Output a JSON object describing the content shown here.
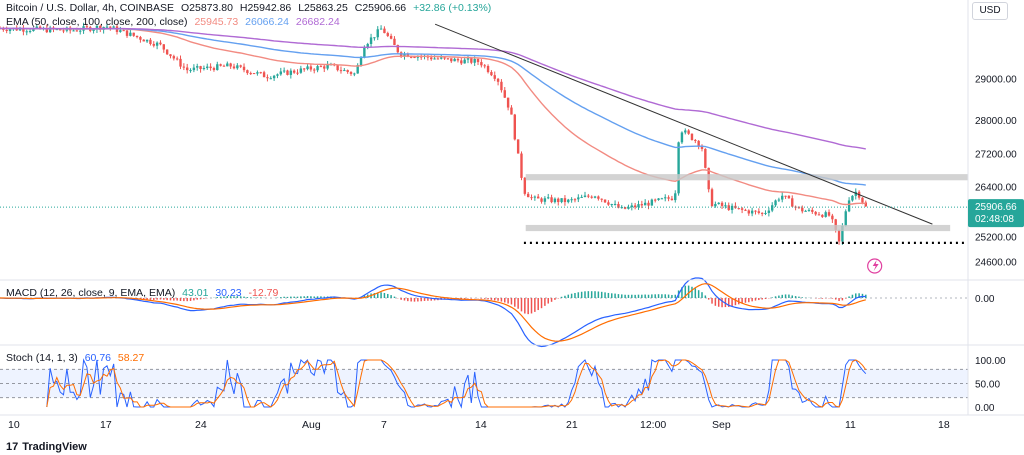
{
  "header": {
    "symbol": "Bitcoin / U.S. Dollar, 4h, COINBASE",
    "ohlc": {
      "open": "O25873.80",
      "high": "H25942.86",
      "low": "L25863.25",
      "close": "C25906.66",
      "change": "+32.86 (+0.13%)"
    },
    "ema_title": "EMA (50, close, 100, close, 200, close)",
    "ema_values": [
      "25945.73",
      "26066.24",
      "26682.24"
    ],
    "currency_button": "USD"
  },
  "price_axis": {
    "ticks": [
      "29000.00",
      "28000.00",
      "27200.00",
      "26400.00",
      "25200.00",
      "24600.00"
    ],
    "current_price": "25906.66",
    "countdown": "02:48:08"
  },
  "time_axis": {
    "labels": [
      "10",
      "17",
      "24",
      "Aug",
      "7",
      "14",
      "21",
      "12:00",
      "Sep",
      "11",
      "18"
    ]
  },
  "macd": {
    "title": "MACD (12, 26, close, 9, EMA, EMA)",
    "values": [
      "43.01",
      "30.23",
      "-12.79"
    ],
    "axis_label": "0.00"
  },
  "stoch": {
    "title": "Stoch (14, 1, 3)",
    "values": [
      "60.76",
      "58.27"
    ],
    "axis_labels": [
      "100.00",
      "50.00",
      "0.00"
    ]
  },
  "branding": {
    "name": "TradingView"
  },
  "colors": {
    "up": "#26a69a",
    "down": "#ef5350",
    "ema50": "#f28b82",
    "ema100": "#64a0f0",
    "ema200": "#b06ad4",
    "macd": "#2962ff",
    "signal": "#ff6d00",
    "stoch_k": "#2962ff",
    "stoch_d": "#ff6d00"
  },
  "chart_data": {
    "type": "candlestick",
    "title": "Bitcoin / U.S. Dollar, 4h, COINBASE",
    "ylim": [
      24350,
      30400
    ],
    "key_closes": [
      {
        "t": 0,
        "v": 30200
      },
      {
        "t": 0.08,
        "v": 30150
      },
      {
        "t": 0.12,
        "v": 30250
      },
      {
        "t": 0.18,
        "v": 29800
      },
      {
        "t": 0.21,
        "v": 29200
      },
      {
        "t": 0.26,
        "v": 29300
      },
      {
        "t": 0.3,
        "v": 29050
      },
      {
        "t": 0.34,
        "v": 29200
      },
      {
        "t": 0.37,
        "v": 29300
      },
      {
        "t": 0.4,
        "v": 29100
      },
      {
        "t": 0.41,
        "v": 29800
      },
      {
        "t": 0.43,
        "v": 30200
      },
      {
        "t": 0.45,
        "v": 29600
      },
      {
        "t": 0.5,
        "v": 29450
      },
      {
        "t": 0.54,
        "v": 29400
      },
      {
        "t": 0.56,
        "v": 29000
      },
      {
        "t": 0.575,
        "v": 28200
      },
      {
        "t": 0.59,
        "v": 26300
      },
      {
        "t": 0.6,
        "v": 26100
      },
      {
        "t": 0.64,
        "v": 26050
      },
      {
        "t": 0.67,
        "v": 26200
      },
      {
        "t": 0.7,
        "v": 25850
      },
      {
        "t": 0.73,
        "v": 26000
      },
      {
        "t": 0.76,
        "v": 26150
      },
      {
        "t": 0.765,
        "v": 27800
      },
      {
        "t": 0.79,
        "v": 27400
      },
      {
        "t": 0.8,
        "v": 26000
      },
      {
        "t": 0.83,
        "v": 25850
      },
      {
        "t": 0.86,
        "v": 25750
      },
      {
        "t": 0.88,
        "v": 26200
      },
      {
        "t": 0.9,
        "v": 25850
      },
      {
        "t": 0.935,
        "v": 25700
      },
      {
        "t": 0.945,
        "v": 25050
      },
      {
        "t": 0.955,
        "v": 26100
      },
      {
        "t": 0.965,
        "v": 26300
      },
      {
        "t": 0.975,
        "v": 25906
      }
    ],
    "resistance_zone": [
      26600,
      26700
    ],
    "support_zone": [
      25380,
      25480
    ],
    "dotted_support": 25050,
    "trendline": [
      {
        "t": 0.49,
        "v": 30300
      },
      {
        "t": 1.05,
        "v": 25500
      }
    ]
  }
}
